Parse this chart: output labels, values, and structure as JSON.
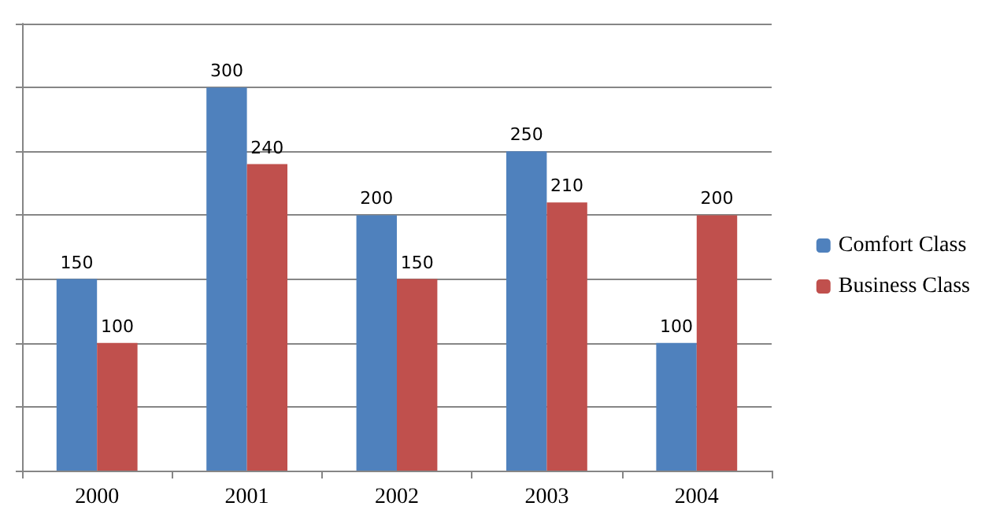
{
  "chart_data": {
    "type": "bar",
    "categories": [
      "2000",
      "2001",
      "2002",
      "2003",
      "2004"
    ],
    "series": [
      {
        "name": "Comfort Class",
        "color": "#4f81bd",
        "values": [
          150,
          300,
          200,
          250,
          100
        ]
      },
      {
        "name": "Business Class",
        "color": "#c0504d",
        "values": [
          100,
          240,
          150,
          210,
          200
        ]
      }
    ],
    "ylim": [
      0,
      350
    ],
    "yticks": [
      {
        "value": 0,
        "label": null
      },
      {
        "value": 50,
        "label": null
      },
      {
        "value": 100,
        "label": null
      },
      {
        "value": 150,
        "label": null
      },
      {
        "value": 200,
        "label": null
      },
      {
        "value": 250,
        "label": null
      },
      {
        "value": 300,
        "label": null
      },
      {
        "value": 350,
        "label": null
      }
    ],
    "tick_labels": "x",
    "grid": "y",
    "legend": "right",
    "data_labels": true
  }
}
